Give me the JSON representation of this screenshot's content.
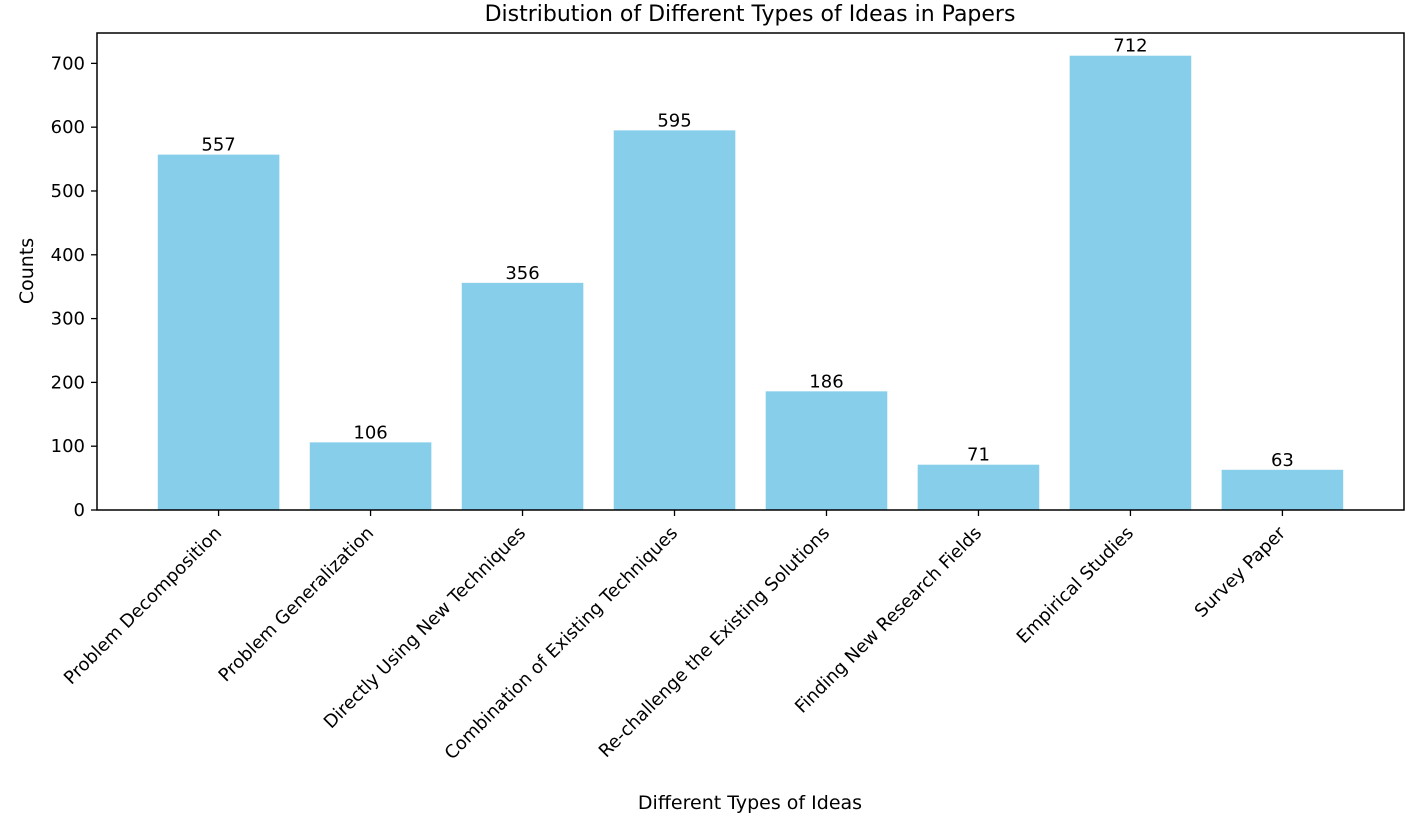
{
  "chart_data": {
    "type": "bar",
    "title": "Distribution of Different Types of Ideas in Papers",
    "xlabel": "Different Types of Ideas",
    "ylabel": "Counts",
    "categories": [
      "Problem Decomposition",
      "Problem Generalization",
      "Directly Using New Techniques",
      "Combination of Existing Techniques",
      "Re-challenge the Existing Solutions",
      "Finding New Research Fields",
      "Empirical Studies",
      "Survey Paper"
    ],
    "values": [
      557,
      106,
      356,
      595,
      186,
      71,
      712,
      63
    ],
    "data_labels": [
      "557",
      "106",
      "356",
      "595",
      "186",
      "71",
      "712",
      "63"
    ],
    "ylim": [
      0,
      747.6
    ],
    "yticks": [
      0,
      100,
      200,
      300,
      400,
      500,
      600,
      700
    ],
    "ytick_labels": [
      "0",
      "100",
      "200",
      "300",
      "400",
      "500",
      "600",
      "700"
    ],
    "bar_color": "#87ceeb",
    "grid": false,
    "legend": "none"
  }
}
